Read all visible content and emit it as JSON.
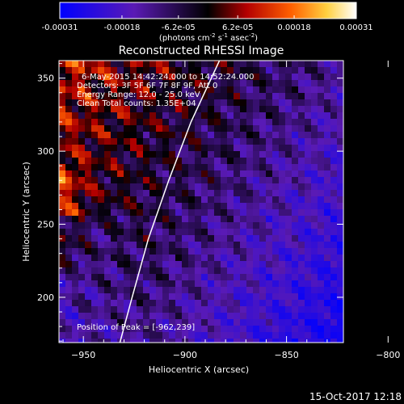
{
  "chart_data": {
    "type": "heatmap",
    "title": "Reconstructed RHESSI Image",
    "xlabel": "Heliocentric X (arcsec)",
    "ylabel": "Heliocentric Y (arcsec)",
    "xlim": [
      -962,
      -822
    ],
    "ylim": [
      169,
      362
    ],
    "x_ticks": [
      -950,
      -900,
      -850,
      -800
    ],
    "y_ticks": [
      200,
      250,
      300,
      350
    ],
    "colorbar": {
      "range": [
        -0.00031,
        0.00031
      ],
      "tick_labels": [
        "-0.00031",
        "-0.00018",
        "-6.2e-05",
        "6.2e-05",
        "0.00018",
        "0.00031"
      ],
      "tick_values": [
        -0.00031,
        -0.00018,
        -6.2e-05,
        6.2e-05,
        0.00018,
        0.00031
      ],
      "unit_label": "(photons cm",
      "unit_sup1": "-2",
      "unit_mid": " s",
      "unit_sup2": "-1",
      "unit_mid2": " asec",
      "unit_sup3": "-2",
      "unit_end": ")",
      "colormap_stops": [
        "#0000ff",
        "#5a1ab5",
        "#000000",
        "#b40000",
        "#ff6000",
        "#ffd040",
        "#ffffff"
      ]
    },
    "annotations": {
      "time_range": "6-May-2015 14:42:24.000 to 14:52:24.000",
      "detectors": "Detectors: 3F 5F 6F 7F 8F 9F, Att 0",
      "energy": "Energy Range: 12.0 - 25.0 keV",
      "clean": "Clean   Total counts: 1.35E+04",
      "peak": "Position of Peak = [-962,239]"
    },
    "limb_curve": [
      [
        -932,
        169
      ],
      [
        -926,
        200
      ],
      [
        -918,
        240
      ],
      [
        -908,
        280
      ],
      [
        -897,
        320
      ],
      [
        -883,
        362
      ]
    ],
    "peak_position": [
      -962,
      239
    ]
  },
  "footer": {
    "timestamp": "15-Oct-2017 12:18"
  }
}
